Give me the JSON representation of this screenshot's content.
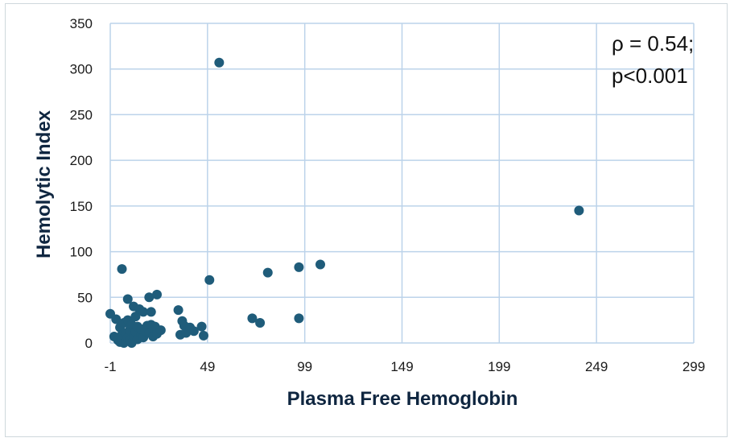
{
  "chart_data": {
    "type": "scatter",
    "xlabel": "Plasma Free Hemoglobin",
    "ylabel": "Hemolytic Index",
    "xlim": [
      -1,
      299
    ],
    "ylim": [
      0,
      350
    ],
    "x_ticks": [
      "-1",
      "49",
      "99",
      "149",
      "199",
      "249",
      "299"
    ],
    "y_ticks": [
      "0",
      "50",
      "100",
      "150",
      "200",
      "250",
      "300",
      "350"
    ],
    "grid": true,
    "marker_color": "#1f5c7a",
    "annotation": {
      "line1": "ρ = 0.54;",
      "line2": "p<0.001"
    },
    "points": [
      {
        "x": -1,
        "y": 32
      },
      {
        "x": 1,
        "y": 7
      },
      {
        "x": 2,
        "y": 26
      },
      {
        "x": 3,
        "y": 3
      },
      {
        "x": 4,
        "y": 1
      },
      {
        "x": 4,
        "y": 17
      },
      {
        "x": 5,
        "y": 81
      },
      {
        "x": 5,
        "y": 9
      },
      {
        "x": 5,
        "y": 4
      },
      {
        "x": 6,
        "y": 22
      },
      {
        "x": 6,
        "y": 0
      },
      {
        "x": 7,
        "y": 11
      },
      {
        "x": 7,
        "y": 2
      },
      {
        "x": 8,
        "y": 48
      },
      {
        "x": 8,
        "y": 25
      },
      {
        "x": 8,
        "y": 6
      },
      {
        "x": 9,
        "y": 14
      },
      {
        "x": 9,
        "y": 3
      },
      {
        "x": 10,
        "y": 20
      },
      {
        "x": 10,
        "y": 0
      },
      {
        "x": 11,
        "y": 40
      },
      {
        "x": 11,
        "y": 8
      },
      {
        "x": 12,
        "y": 29
      },
      {
        "x": 12,
        "y": 12
      },
      {
        "x": 13,
        "y": 4
      },
      {
        "x": 13,
        "y": 18
      },
      {
        "x": 14,
        "y": 37
      },
      {
        "x": 15,
        "y": 9
      },
      {
        "x": 15,
        "y": 15
      },
      {
        "x": 16,
        "y": 34
      },
      {
        "x": 16,
        "y": 6
      },
      {
        "x": 17,
        "y": 13
      },
      {
        "x": 18,
        "y": 19
      },
      {
        "x": 19,
        "y": 50
      },
      {
        "x": 19,
        "y": 11
      },
      {
        "x": 20,
        "y": 34
      },
      {
        "x": 20,
        "y": 20
      },
      {
        "x": 21,
        "y": 7
      },
      {
        "x": 22,
        "y": 18
      },
      {
        "x": 23,
        "y": 53
      },
      {
        "x": 23,
        "y": 10
      },
      {
        "x": 25,
        "y": 14
      },
      {
        "x": 34,
        "y": 36
      },
      {
        "x": 35,
        "y": 9
      },
      {
        "x": 36,
        "y": 24
      },
      {
        "x": 37,
        "y": 19
      },
      {
        "x": 38,
        "y": 11
      },
      {
        "x": 40,
        "y": 17
      },
      {
        "x": 42,
        "y": 13
      },
      {
        "x": 46,
        "y": 18
      },
      {
        "x": 47,
        "y": 8
      },
      {
        "x": 50,
        "y": 69
      },
      {
        "x": 55,
        "y": 307
      },
      {
        "x": 72,
        "y": 27
      },
      {
        "x": 76,
        "y": 22
      },
      {
        "x": 80,
        "y": 77
      },
      {
        "x": 96,
        "y": 83
      },
      {
        "x": 96,
        "y": 27
      },
      {
        "x": 107,
        "y": 86
      },
      {
        "x": 240,
        "y": 145
      }
    ]
  }
}
